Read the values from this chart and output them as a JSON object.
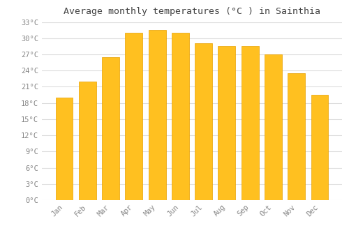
{
  "title": "Average monthly temperatures (°C ) in Sainthia",
  "months": [
    "Jan",
    "Feb",
    "Mar",
    "Apr",
    "May",
    "Jun",
    "Jul",
    "Aug",
    "Sep",
    "Oct",
    "Nov",
    "Dec"
  ],
  "values": [
    19.0,
    22.0,
    26.5,
    31.0,
    31.5,
    31.0,
    29.0,
    28.5,
    28.5,
    27.0,
    23.5,
    19.5
  ],
  "bar_color": "#FFC020",
  "bar_edge_color": "#E8A000",
  "background_color": "#FFFFFF",
  "grid_color": "#DDDDDD",
  "tick_label_color": "#888888",
  "title_color": "#444444",
  "ylim": [
    0,
    33
  ],
  "yticks": [
    0,
    3,
    6,
    9,
    12,
    15,
    18,
    21,
    24,
    27,
    30,
    33
  ],
  "title_fontsize": 9.5,
  "tick_fontsize": 7.5,
  "bar_width": 0.75
}
